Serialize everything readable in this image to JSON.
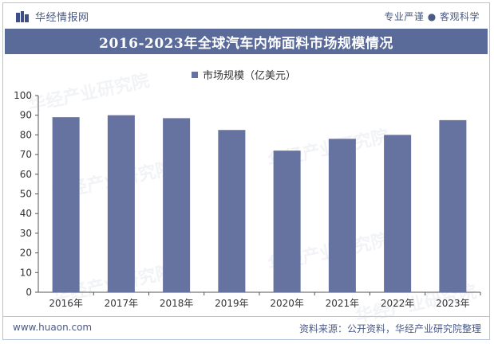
{
  "header": {
    "brand_name": "华经情报网",
    "slogan": "专业严谨 ● 客观科学"
  },
  "title": "2016-2023年全球汽车内饰面料市场规模情况",
  "chart_data": {
    "type": "bar",
    "title": "2016-2023年全球汽车内饰面料市场规模情况",
    "categories": [
      "2016年",
      "2017年",
      "2018年",
      "2019年",
      "2020年",
      "2021年",
      "2022年",
      "2023年"
    ],
    "series": [
      {
        "name": "市场规模（亿美元）",
        "values": [
          89,
          90,
          88.5,
          82.5,
          72,
          78,
          80,
          87.5
        ]
      }
    ],
    "y_ticks": [
      "0",
      "10",
      "20",
      "30",
      "40",
      "50",
      "60",
      "70",
      "80",
      "90",
      "100"
    ],
    "ylim": [
      0,
      100
    ],
    "xlabel": "",
    "ylabel": "",
    "legend_position": "top",
    "bar_color": "#6672a0",
    "grid": false
  },
  "watermark": "华经产业研究院",
  "footer": {
    "url": "www.huaon.com",
    "source": "资料来源：公开资料，华经产业研究院整理"
  }
}
